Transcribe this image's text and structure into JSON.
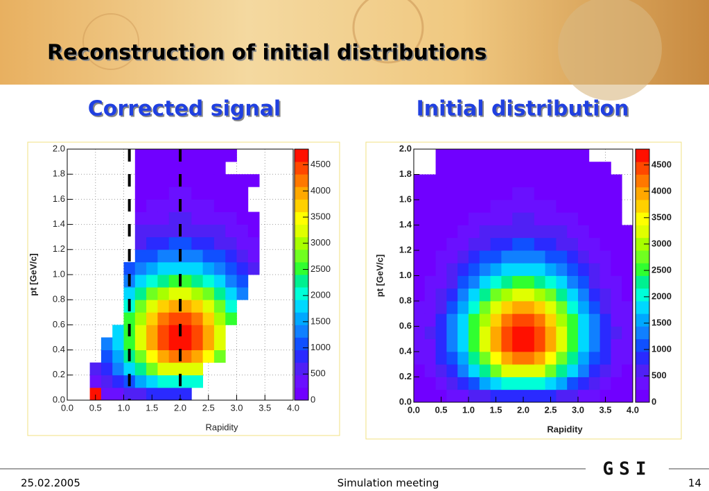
{
  "slide": {
    "title": "Reconstruction of initial distributions",
    "subtitles": [
      "Corrected signal",
      "Initial distribution"
    ],
    "date": "25.02.2005",
    "meeting": "Simulation meeting",
    "page": "14",
    "logo": "GSI"
  },
  "chart_data": [
    {
      "type": "heatmap",
      "xlabel": "Rapidity",
      "ylabel": "pt [GeV/c]",
      "xlim": [
        0,
        4
      ],
      "ylim": [
        0,
        2
      ],
      "zlim": [
        0,
        4800
      ],
      "xticks": [
        {
          "value": 0,
          "label": "0.0"
        },
        {
          "value": 0.5,
          "label": "0.5"
        },
        {
          "value": 1,
          "label": "1.0"
        },
        {
          "value": 1.5,
          "label": "1.5"
        },
        {
          "value": 2,
          "label": "2.0"
        },
        {
          "value": 2.5,
          "label": "2.5"
        },
        {
          "value": 3,
          "label": "3.0"
        },
        {
          "value": 3.5,
          "label": "3.5"
        },
        {
          "value": 4,
          "label": "4.0"
        }
      ],
      "yticks": [
        {
          "value": 0,
          "label": "0.0"
        },
        {
          "value": 0.2,
          "label": "0.2"
        },
        {
          "value": 0.4,
          "label": "0.4"
        },
        {
          "value": 0.6,
          "label": "0.6"
        },
        {
          "value": 0.8,
          "label": "0.8"
        },
        {
          "value": 1,
          "label": "1.0"
        },
        {
          "value": 1.2,
          "label": "1.2"
        },
        {
          "value": 1.4,
          "label": "1.4"
        },
        {
          "value": 1.6,
          "label": "1.6"
        },
        {
          "value": 1.8,
          "label": "1.8"
        },
        {
          "value": 2,
          "label": "2.0"
        }
      ],
      "zticks": [
        0,
        500,
        1000,
        1500,
        2000,
        2500,
        3000,
        3500,
        4000,
        4500
      ],
      "grid": true,
      "vlines": [
        1.1,
        2.0
      ],
      "palette": [
        "#7000ff",
        "#6a10ff",
        "#5020f5",
        "#2a2aff",
        "#1050ff",
        "#1080ff",
        "#00a8ff",
        "#00d8ff",
        "#00ffd8",
        "#00f090",
        "#30ff30",
        "#70ff20",
        "#a8ff00",
        "#e0ff00",
        "#ffff00",
        "#ffd000",
        "#ffa800",
        "#ff7800",
        "#ff4800",
        "#ff1000"
      ],
      "z": [
        [
          null,
          null,
          4800,
          260,
          370,
          510,
          650,
          790,
          890,
          950,
          950,
          null,
          null,
          null,
          null,
          null,
          null,
          null,
          null,
          null
        ],
        [
          null,
          null,
          370,
          580,
          840,
          1140,
          1470,
          1770,
          2010,
          2140,
          2140,
          2010,
          null,
          null,
          null,
          null,
          null,
          null,
          null,
          null
        ],
        [
          null,
          null,
          570,
          910,
          1310,
          1780,
          2280,
          2760,
          3120,
          3330,
          3330,
          3120,
          null,
          null,
          null,
          null,
          null,
          null,
          null,
          null
        ],
        [
          null,
          null,
          null,
          1140,
          1650,
          2240,
          2870,
          3460,
          3930,
          4180,
          4180,
          3930,
          3460,
          2870,
          null,
          null,
          null,
          null,
          null,
          null
        ],
        [
          null,
          null,
          null,
          1270,
          1830,
          2490,
          3200,
          3860,
          4370,
          4660,
          4660,
          4370,
          3860,
          3200,
          null,
          null,
          null,
          null,
          null,
          null
        ],
        [
          null,
          null,
          null,
          null,
          1870,
          2540,
          3260,
          3940,
          4460,
          4750,
          4750,
          4460,
          3940,
          3260,
          null,
          null,
          null,
          null,
          null,
          null
        ],
        [
          null,
          null,
          null,
          null,
          null,
          2420,
          3100,
          3740,
          4240,
          4510,
          4510,
          4240,
          3740,
          3100,
          2420,
          null,
          null,
          null,
          null,
          null
        ],
        [
          null,
          null,
          null,
          null,
          null,
          2090,
          2680,
          3230,
          3660,
          3900,
          3900,
          3660,
          3230,
          2680,
          2090,
          null,
          null,
          null,
          null,
          null
        ],
        [
          null,
          null,
          null,
          null,
          null,
          1730,
          2220,
          2680,
          3040,
          3230,
          3230,
          3040,
          2680,
          2220,
          1730,
          1270,
          null,
          null,
          null,
          null
        ],
        [
          null,
          null,
          null,
          null,
          null,
          1350,
          1730,
          2090,
          2370,
          2520,
          2520,
          2370,
          2090,
          1730,
          1350,
          990,
          null,
          null,
          null,
          null
        ],
        [
          null,
          null,
          null,
          null,
          null,
          1020,
          1310,
          1570,
          1790,
          1900,
          1900,
          1790,
          1570,
          1310,
          1020,
          750,
          520,
          null,
          null,
          null
        ],
        [
          null,
          null,
          null,
          null,
          null,
          null,
          980,
          1180,
          1340,
          1430,
          1430,
          1340,
          1180,
          980,
          760,
          560,
          390,
          null,
          null,
          null
        ],
        [
          null,
          null,
          null,
          null,
          null,
          null,
          690,
          830,
          940,
          1000,
          1000,
          940,
          830,
          690,
          530,
          390,
          270,
          null,
          null,
          null
        ],
        [
          null,
          null,
          null,
          null,
          null,
          null,
          490,
          590,
          670,
          710,
          710,
          670,
          590,
          490,
          380,
          280,
          190,
          null,
          null,
          null
        ],
        [
          null,
          null,
          null,
          null,
          null,
          null,
          330,
          390,
          450,
          480,
          480,
          450,
          390,
          330,
          250,
          190,
          130,
          null,
          null,
          null
        ],
        [
          null,
          null,
          null,
          null,
          null,
          null,
          230,
          280,
          310,
          330,
          330,
          310,
          280,
          230,
          180,
          130,
          null,
          null,
          null,
          null
        ],
        [
          null,
          null,
          null,
          null,
          null,
          null,
          160,
          200,
          220,
          240,
          240,
          220,
          200,
          160,
          130,
          90,
          null,
          null,
          null,
          null
        ],
        [
          null,
          null,
          null,
          null,
          null,
          null,
          110,
          140,
          160,
          170,
          170,
          160,
          140,
          110,
          90,
          70,
          50,
          null,
          null,
          null
        ],
        [
          null,
          null,
          null,
          null,
          null,
          null,
          80,
          100,
          110,
          120,
          120,
          110,
          100,
          80,
          null,
          null,
          null,
          null,
          null,
          null
        ],
        [
          null,
          null,
          null,
          null,
          null,
          null,
          70,
          80,
          90,
          100,
          100,
          90,
          80,
          70,
          50,
          null,
          null,
          null,
          null,
          null
        ]
      ]
    },
    {
      "type": "heatmap",
      "xlabel": "Rapidity",
      "ylabel": "pt [GeV/c]",
      "xlim": [
        0,
        4
      ],
      "ylim": [
        0,
        2
      ],
      "zlim": [
        0,
        4800
      ],
      "xticks": [
        {
          "value": 0,
          "label": "0.0"
        },
        {
          "value": 0.5,
          "label": "0.5"
        },
        {
          "value": 1,
          "label": "1.0"
        },
        {
          "value": 1.5,
          "label": "1.5"
        },
        {
          "value": 2,
          "label": "2.0"
        },
        {
          "value": 2.5,
          "label": "2.5"
        },
        {
          "value": 3,
          "label": "3.0"
        },
        {
          "value": 3.5,
          "label": "3.5"
        },
        {
          "value": 4,
          "label": "4.0"
        }
      ],
      "yticks": [
        {
          "value": 0,
          "label": "0.0"
        },
        {
          "value": 0.2,
          "label": "0.2"
        },
        {
          "value": 0.4,
          "label": "0.4"
        },
        {
          "value": 0.6,
          "label": "0.6"
        },
        {
          "value": 0.8,
          "label": "0.8"
        },
        {
          "value": 1,
          "label": "1.0"
        },
        {
          "value": 1.2,
          "label": "1.2"
        },
        {
          "value": 1.4,
          "label": "1.4"
        },
        {
          "value": 1.6,
          "label": "1.6"
        },
        {
          "value": 1.8,
          "label": "1.8"
        },
        {
          "value": 2,
          "label": "2.0"
        }
      ],
      "zticks": [
        0,
        500,
        1000,
        1500,
        2000,
        2500,
        3000,
        3500,
        4000,
        4500
      ],
      "grid": true,
      "palette": [
        "#7000ff",
        "#6a10ff",
        "#5020f5",
        "#2a2aff",
        "#1050ff",
        "#1080ff",
        "#00a8ff",
        "#00d8ff",
        "#00ffd8",
        "#00f090",
        "#30ff30",
        "#70ff20",
        "#a8ff00",
        "#e0ff00",
        "#ffff00",
        "#ffd000",
        "#ffa800",
        "#ff7800",
        "#ff4800",
        "#ff1000"
      ],
      "z": [
        [
          60,
          100,
          160,
          260,
          370,
          510,
          650,
          790,
          890,
          950,
          950,
          890,
          790,
          650,
          510,
          370,
          260,
          160,
          100,
          60
        ],
        [
          130,
          220,
          370,
          580,
          840,
          1140,
          1470,
          1770,
          2010,
          2140,
          2140,
          2010,
          1770,
          1470,
          1140,
          840,
          580,
          370,
          220,
          130
        ],
        [
          200,
          340,
          570,
          910,
          1310,
          1780,
          2280,
          2760,
          3120,
          3330,
          3330,
          3120,
          2760,
          2280,
          1780,
          1310,
          910,
          570,
          340,
          200
        ],
        [
          250,
          420,
          720,
          1140,
          1650,
          2240,
          2870,
          3460,
          3930,
          4180,
          4180,
          3930,
          3460,
          2870,
          2240,
          1650,
          1140,
          720,
          420,
          250
        ],
        [
          280,
          470,
          800,
          1270,
          1830,
          2490,
          3200,
          3860,
          4370,
          4660,
          4660,
          4370,
          3860,
          3200,
          2490,
          1830,
          1270,
          800,
          470,
          280
        ],
        [
          290,
          480,
          820,
          1300,
          1870,
          2540,
          3260,
          3940,
          4460,
          4750,
          4750,
          4460,
          3940,
          3260,
          2540,
          1870,
          1300,
          820,
          480,
          290
        ],
        [
          270,
          460,
          780,
          1230,
          1780,
          2420,
          3100,
          3740,
          4240,
          4510,
          4510,
          4240,
          3740,
          3100,
          2420,
          1780,
          1230,
          780,
          460,
          270
        ],
        [
          240,
          390,
          670,
          1060,
          1530,
          2090,
          2680,
          3230,
          3660,
          3900,
          3900,
          3660,
          3230,
          2680,
          2090,
          1530,
          1060,
          670,
          390,
          240
        ],
        [
          200,
          330,
          550,
          880,
          1270,
          1730,
          2220,
          2680,
          3040,
          3230,
          3230,
          3040,
          2680,
          2220,
          1730,
          1270,
          880,
          550,
          330,
          200
        ],
        [
          150,
          250,
          430,
          690,
          990,
          1350,
          1730,
          2090,
          2370,
          2520,
          2520,
          2370,
          2090,
          1730,
          1350,
          990,
          690,
          430,
          250,
          150
        ],
        [
          120,
          190,
          330,
          520,
          750,
          1020,
          1310,
          1570,
          1790,
          1900,
          1900,
          1790,
          1570,
          1310,
          1020,
          750,
          520,
          330,
          190,
          120
        ],
        [
          90,
          140,
          240,
          390,
          560,
          760,
          980,
          1180,
          1340,
          1430,
          1430,
          1340,
          1180,
          980,
          760,
          560,
          390,
          240,
          140,
          90
        ],
        [
          60,
          100,
          170,
          270,
          390,
          530,
          690,
          830,
          940,
          1000,
          1000,
          940,
          830,
          690,
          530,
          390,
          270,
          170,
          100,
          60
        ],
        [
          40,
          70,
          120,
          190,
          280,
          380,
          490,
          590,
          670,
          710,
          710,
          670,
          590,
          490,
          380,
          280,
          190,
          120,
          70,
          40
        ],
        [
          30,
          50,
          80,
          130,
          190,
          250,
          330,
          390,
          450,
          480,
          480,
          450,
          390,
          330,
          250,
          190,
          130,
          80,
          50,
          null
        ],
        [
          20,
          30,
          60,
          90,
          130,
          180,
          230,
          280,
          310,
          330,
          330,
          310,
          280,
          230,
          180,
          130,
          90,
          60,
          30,
          null
        ],
        [
          10,
          20,
          40,
          60,
          90,
          130,
          160,
          200,
          220,
          240,
          240,
          220,
          200,
          160,
          130,
          90,
          60,
          40,
          20,
          null
        ],
        [
          10,
          20,
          30,
          50,
          70,
          90,
          110,
          140,
          160,
          170,
          170,
          160,
          140,
          110,
          90,
          70,
          50,
          30,
          20,
          null
        ],
        [
          null,
          null,
          20,
          30,
          50,
          60,
          80,
          100,
          110,
          120,
          120,
          110,
          100,
          80,
          60,
          50,
          30,
          20,
          null,
          null
        ],
        [
          null,
          null,
          20,
          30,
          40,
          50,
          70,
          80,
          90,
          100,
          100,
          90,
          80,
          70,
          50,
          40,
          null,
          null,
          null,
          null
        ]
      ]
    }
  ]
}
